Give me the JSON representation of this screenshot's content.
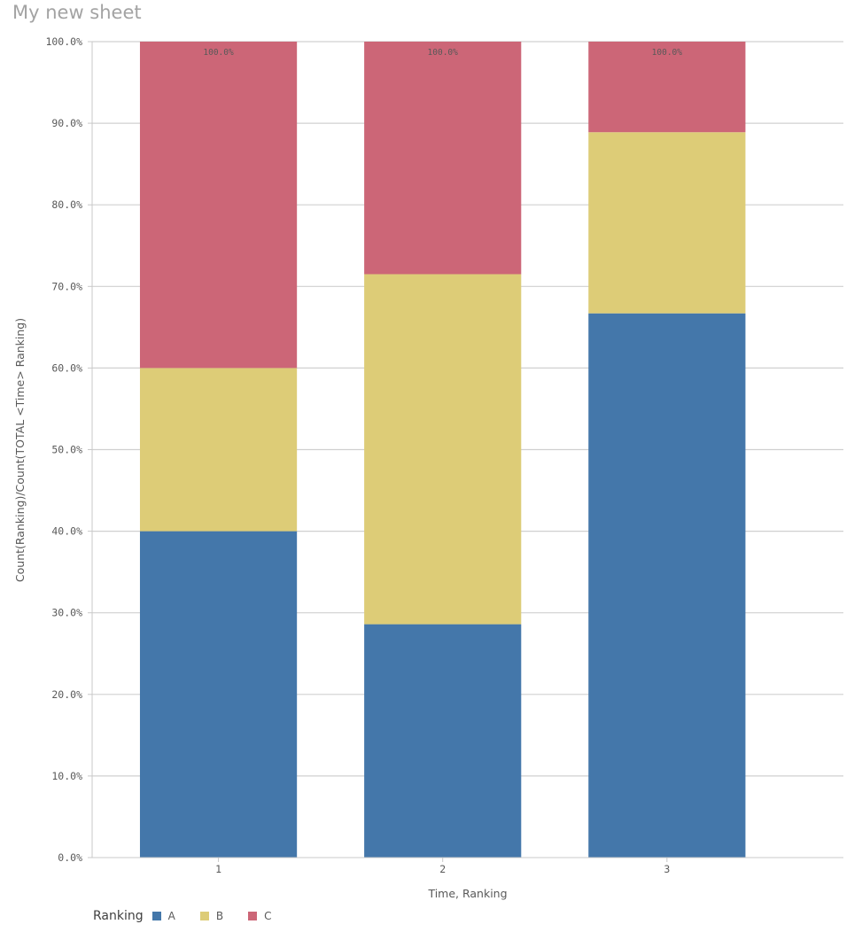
{
  "sheet": {
    "title": "My new sheet"
  },
  "chart_data": {
    "type": "bar",
    "stacked": true,
    "categories": [
      "1",
      "2",
      "3"
    ],
    "series": [
      {
        "name": "A",
        "color": "#4477aa",
        "values": [
          40.0,
          28.6,
          66.7
        ]
      },
      {
        "name": "B",
        "color": "#ddcc77",
        "values": [
          20.0,
          42.9,
          22.2
        ]
      },
      {
        "name": "C",
        "color": "#cc6677",
        "values": [
          40.0,
          28.5,
          11.1
        ]
      }
    ],
    "totals": [
      "100.0%",
      "100.0%",
      "100.0%"
    ],
    "ylim": [
      0,
      100
    ],
    "yticks": [
      "0.0%",
      "10.0%",
      "20.0%",
      "30.0%",
      "40.0%",
      "50.0%",
      "60.0%",
      "70.0%",
      "80.0%",
      "90.0%",
      "100.0%"
    ],
    "xlabel": "Time, Ranking",
    "ylabel": "Count(Ranking)/Count(TOTAL <Time> Ranking)",
    "grid": true,
    "legend": {
      "title": "Ranking",
      "position": "bottom-left"
    }
  }
}
